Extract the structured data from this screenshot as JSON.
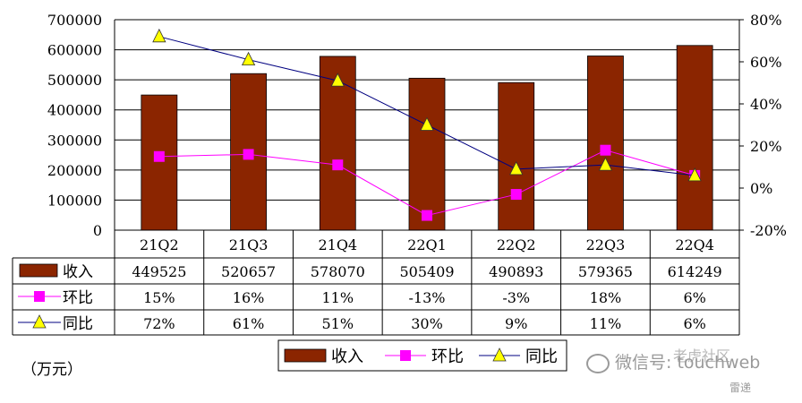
{
  "chart_data": {
    "type": "bar",
    "categories": [
      "21Q2",
      "21Q3",
      "21Q4",
      "22Q1",
      "22Q2",
      "22Q3",
      "22Q4"
    ],
    "series": [
      {
        "name": "收入",
        "kind": "bar",
        "axis": "left",
        "color": "#8B2500",
        "values": [
          449525,
          520657,
          578070,
          505409,
          490893,
          579365,
          614249
        ],
        "labels": [
          "449525",
          "520657",
          "578070",
          "505409",
          "490893",
          "579365",
          "614249"
        ]
      },
      {
        "name": "环比",
        "kind": "line",
        "axis": "right",
        "color": "#FF00FF",
        "marker": "square",
        "values": [
          15,
          16,
          11,
          -13,
          -3,
          18,
          6
        ],
        "labels": [
          "15%",
          "16%",
          "11%",
          "-13%",
          "-3%",
          "18%",
          "6%"
        ]
      },
      {
        "name": "同比",
        "kind": "line",
        "axis": "right",
        "color": "#000080",
        "marker": "triangle",
        "marker_color": "#FFFF00",
        "values": [
          72,
          61,
          51,
          30,
          9,
          11,
          6
        ],
        "labels": [
          "72%",
          "61%",
          "51%",
          "30%",
          "9%",
          "11%",
          "6%"
        ]
      }
    ],
    "ylim_left": [
      0,
      700000
    ],
    "yticks_left": [
      "0",
      "100000",
      "200000",
      "300000",
      "400000",
      "500000",
      "600000",
      "700000"
    ],
    "ylim_right": [
      -20,
      80
    ],
    "yticks_right": [
      "-20%",
      "0%",
      "20%",
      "40%",
      "60%",
      "80%"
    ],
    "grid": true,
    "legend": "bottom",
    "data_table": true
  },
  "unit_label": "（万元）",
  "watermark": {
    "text": "微信号: touchweb",
    "site": "雷递",
    "faint": "老虎社区"
  }
}
